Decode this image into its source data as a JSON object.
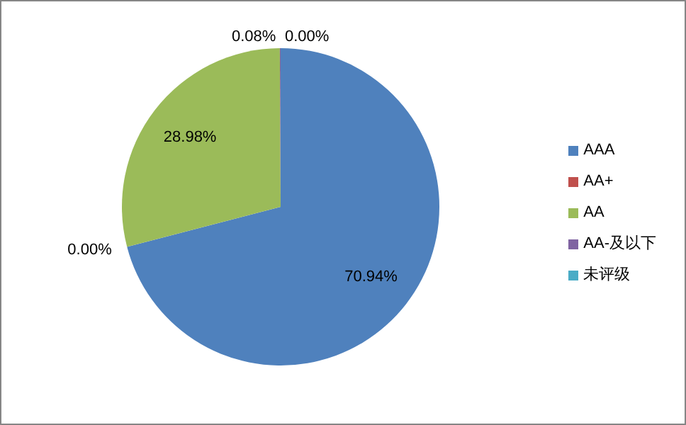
{
  "chart_data": {
    "type": "pie",
    "categories": [
      "AAA",
      "AA+",
      "AA",
      "AA-及以下",
      "未评级"
    ],
    "values": [
      70.94,
      0.0,
      28.98,
      0.08,
      0.0
    ],
    "value_labels": [
      "70.94%",
      "0.00%",
      "28.98%",
      "0.08%",
      "0.00%"
    ],
    "colors": [
      "#4f81bd",
      "#c0504d",
      "#9bbb59",
      "#8064a2",
      "#4bacc6"
    ],
    "legend": "right"
  }
}
